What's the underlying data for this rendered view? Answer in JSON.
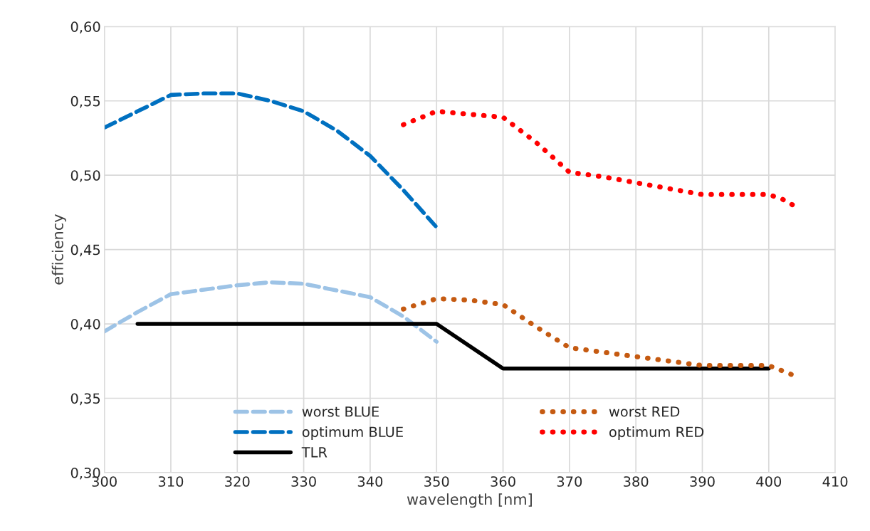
{
  "chart_data": {
    "type": "line",
    "xlabel": "wavelength [nm]",
    "ylabel": "efficiency",
    "xlim": [
      300,
      410
    ],
    "xticks": [
      300,
      310,
      320,
      330,
      340,
      350,
      360,
      370,
      380,
      390,
      400,
      410
    ],
    "ylim": [
      0.3,
      0.6
    ],
    "yticks": [
      {
        "value": 0.3,
        "label": "0,30"
      },
      {
        "value": 0.35,
        "label": "0,35"
      },
      {
        "value": 0.4,
        "label": "0,40"
      },
      {
        "value": 0.45,
        "label": "0,45"
      },
      {
        "value": 0.5,
        "label": "0,50"
      },
      {
        "value": 0.55,
        "label": "0,55"
      },
      {
        "value": 0.6,
        "label": "0,60"
      }
    ],
    "grid": true,
    "legend": "bottom",
    "marker": "none",
    "series": [
      {
        "name": "worst BLUE",
        "color": "#9dc3e6",
        "line_style": "dashed",
        "x": [
          300,
          305,
          310,
          320,
          325,
          330,
          340,
          345,
          350
        ],
        "values": [
          0.395,
          0.408,
          0.42,
          0.426,
          0.428,
          0.427,
          0.418,
          0.405,
          0.388
        ]
      },
      {
        "name": "optimum BLUE",
        "color": "#0070c0",
        "line_style": "dashed",
        "x": [
          300,
          305,
          310,
          315,
          320,
          325,
          330,
          335,
          340,
          345,
          350
        ],
        "values": [
          0.532,
          0.543,
          0.554,
          0.555,
          0.555,
          0.55,
          0.543,
          0.53,
          0.513,
          0.49,
          0.465
        ]
      },
      {
        "name": "TLR",
        "color": "#000000",
        "line_style": "solid",
        "x": [
          305,
          350,
          360,
          400
        ],
        "values": [
          0.4,
          0.4,
          0.37,
          0.37
        ]
      },
      {
        "name": "worst RED",
        "color": "#c55a11",
        "line_style": "dotted",
        "x": [
          345,
          350,
          355,
          360,
          365,
          370,
          375,
          380,
          390,
          400,
          404
        ],
        "values": [
          0.41,
          0.417,
          0.416,
          0.413,
          0.398,
          0.384,
          0.381,
          0.378,
          0.372,
          0.372,
          0.365
        ]
      },
      {
        "name": "optimum RED",
        "color": "#ff0000",
        "line_style": "dotted",
        "x": [
          345,
          350,
          355,
          360,
          365,
          370,
          375,
          380,
          385,
          390,
          395,
          400,
          402,
          404
        ],
        "values": [
          0.534,
          0.543,
          0.541,
          0.539,
          0.522,
          0.502,
          0.499,
          0.495,
          0.491,
          0.487,
          0.487,
          0.487,
          0.484,
          0.479
        ]
      }
    ]
  }
}
